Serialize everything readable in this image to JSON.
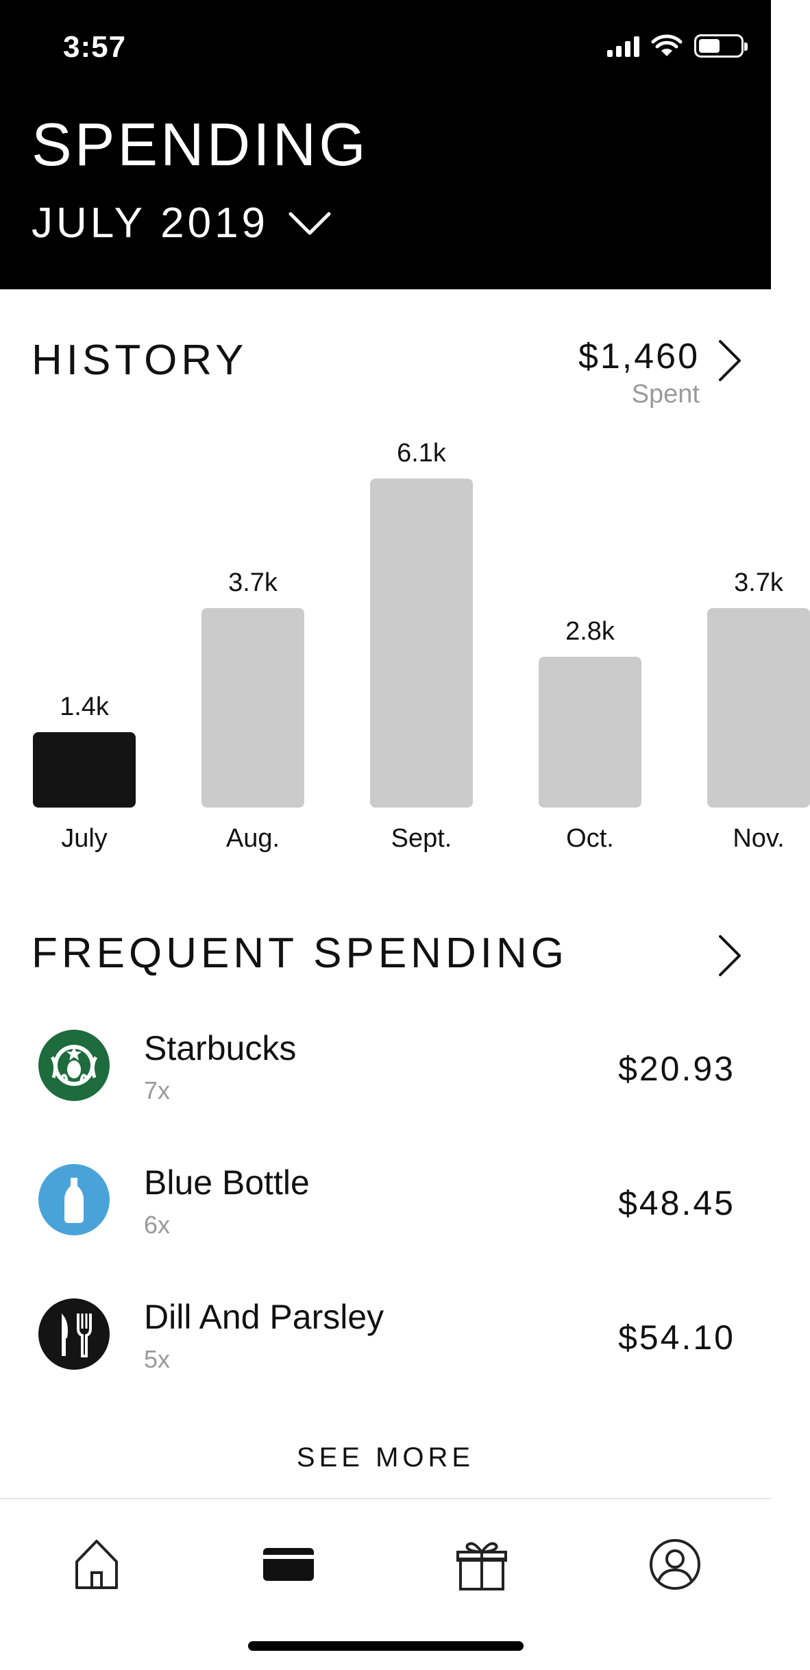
{
  "status_bar": {
    "time": "3:57"
  },
  "header": {
    "title": "SPENDING",
    "month": "JULY 2019"
  },
  "history": {
    "title": "HISTORY",
    "total": "$1,460",
    "total_label": "Spent"
  },
  "chart_data": {
    "type": "bar",
    "categories": [
      "July",
      "Aug.",
      "Sept.",
      "Oct.",
      "Nov."
    ],
    "values": [
      1.4,
      3.7,
      6.1,
      2.8,
      3.7
    ],
    "data_labels": [
      "1.4k",
      "3.7k",
      "6.1k",
      "2.8k",
      "3.7k"
    ],
    "active_index": 0,
    "active_color": "#141414",
    "inactive_color": "#cbcbcb"
  },
  "frequent": {
    "title": "FREQUENT SPENDING",
    "items": [
      {
        "name": "Starbucks",
        "count": "7x",
        "amount": "$20.93",
        "logo": "starbucks-logo"
      },
      {
        "name": "Blue Bottle",
        "count": "6x",
        "amount": "$48.45",
        "logo": "blue-bottle-logo"
      },
      {
        "name": "Dill And Parsley",
        "count": "5x",
        "amount": "$54.10",
        "logo": "fork-knife-logo"
      }
    ],
    "see_more": "SEE MORE"
  },
  "tabbar": {
    "tabs": [
      {
        "icon": "home-icon"
      },
      {
        "icon": "card-icon",
        "selected": true
      },
      {
        "icon": "gift-icon"
      },
      {
        "icon": "profile-icon"
      }
    ]
  }
}
